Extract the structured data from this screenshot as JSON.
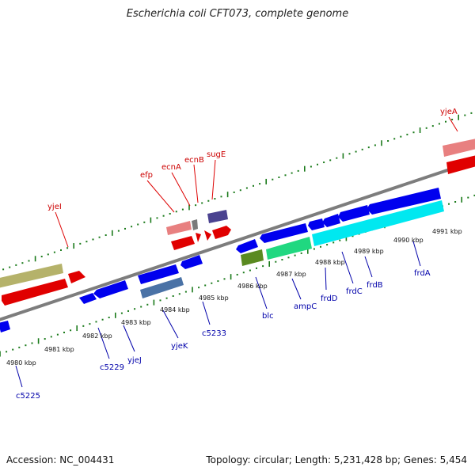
{
  "title": "Escherichia coli CFT073, complete genome",
  "footer": {
    "accession": "Accession: NC_004431",
    "summary": "Topology: circular; Length: 5,231,428 bp; Genes: 5,454"
  },
  "colors": {
    "forward_label": "#cc0000",
    "reverse_label": "#0000aa",
    "tick": "#1a7a1a",
    "backbone": "#808080"
  },
  "kbp_labels": [
    "4980 kbp",
    "4981 kbp",
    "4982 kbp",
    "4983 kbp",
    "4984 kbp",
    "4985 kbp",
    "4986 kbp",
    "4987 kbp",
    "4988 kbp",
    "4989 kbp",
    "4990 kbp",
    "4991 kbp"
  ],
  "forward_genes": [
    "yjeI",
    "efp",
    "ecnA",
    "ecnB",
    "sugE",
    "yjeA"
  ],
  "reverse_genes": [
    "c5225",
    "c5229",
    "yjeJ",
    "yjeK",
    "c5233",
    "blc",
    "ampC",
    "frdD",
    "frdC",
    "frdB",
    "frdA"
  ]
}
